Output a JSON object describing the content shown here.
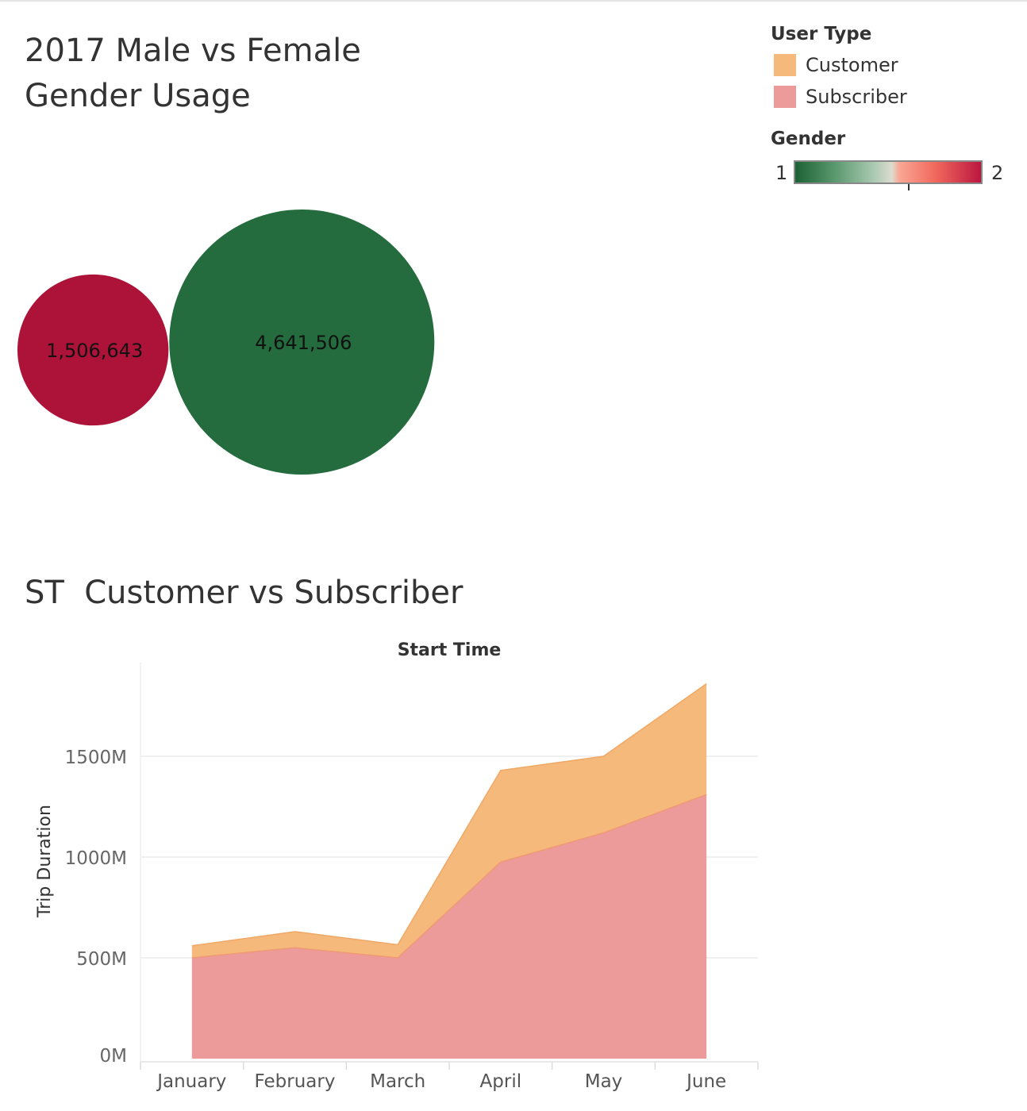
{
  "gender_title": "2017 Male vs Female Gender Usage",
  "st_title": "ST  Customer vs Subscriber",
  "legend": {
    "user_type_title": "User Type",
    "items": [
      {
        "label": "Customer",
        "color": "#f5b97b"
      },
      {
        "label": "Subscriber",
        "color": "#ec9a9a"
      }
    ],
    "gender_title": "Gender",
    "gender_min": "1",
    "gender_max": "2"
  },
  "colors": {
    "female": "#ad1238",
    "male": "#246b3d",
    "customer": "#f5b97b",
    "subscriber": "#ec9a9a"
  },
  "chart_data": [
    {
      "type": "bubble",
      "title": "2017 Male vs Female Gender Usage",
      "values": [
        {
          "gender": 2,
          "value": 1506643,
          "label": "1,506,643",
          "color": "#ad1238"
        },
        {
          "gender": 1,
          "value": 4641506,
          "label": "4,641,506",
          "color": "#246b3d"
        }
      ]
    },
    {
      "type": "area",
      "title": "ST  Customer vs Subscriber",
      "xlabel": "Start Time",
      "ylabel": "Trip Duration",
      "categories": [
        "January",
        "February",
        "March",
        "April",
        "May",
        "June"
      ],
      "stacked": true,
      "series": [
        {
          "name": "Subscriber",
          "color": "#ec9a9a",
          "values": [
            500,
            550,
            500,
            975,
            1120,
            1310
          ]
        },
        {
          "name": "Customer",
          "color": "#f5b97b",
          "values": [
            60,
            80,
            65,
            455,
            380,
            550
          ]
        }
      ],
      "yticks": [
        0,
        500,
        1000,
        1500
      ],
      "ytick_labels": [
        "0M",
        "500M",
        "1000M",
        "1500M"
      ],
      "ylim": [
        0,
        1900
      ],
      "grid": true
    }
  ]
}
